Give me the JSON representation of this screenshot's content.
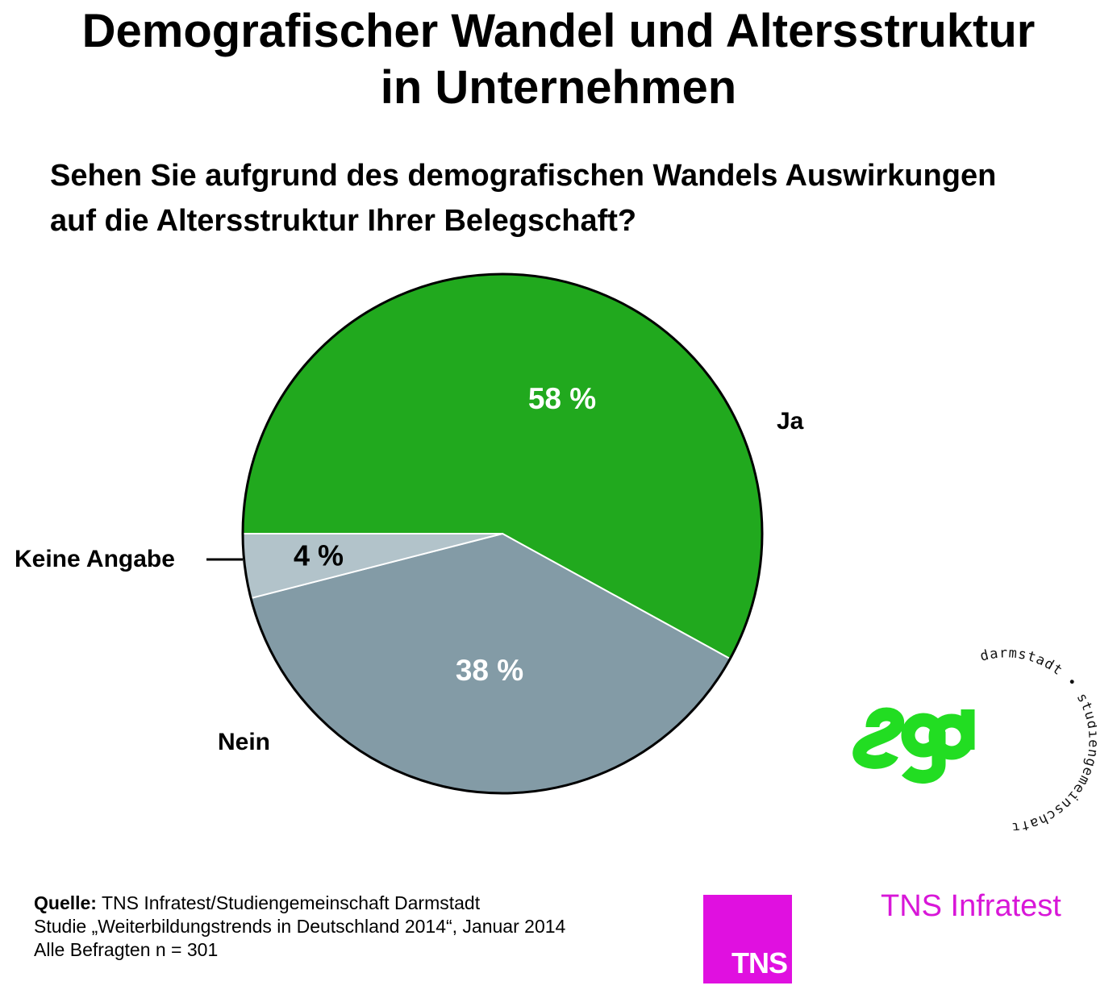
{
  "title_line1": "Demografischer Wandel und Altersstruktur",
  "title_line2": "in Unternehmen",
  "question_line1": "Sehen Sie aufgrund des demografischen Wandels Auswirkungen",
  "question_line2": "auf die Altersstruktur Ihrer Belegschaft?",
  "chart_data": {
    "type": "pie",
    "slices": [
      {
        "label": "Ja",
        "value": 58,
        "value_label": "58 %",
        "color": "#21a91e",
        "label_color": "#ffffff"
      },
      {
        "label": "Nein",
        "value": 38,
        "value_label": "38 %",
        "color": "#839ba6",
        "label_color": "#ffffff"
      },
      {
        "label": "Keine Angabe",
        "value": 4,
        "value_label": "4 %",
        "color": "#b2c3ca",
        "label_color": "#000000"
      }
    ]
  },
  "source": {
    "prefix": "Quelle:",
    "line1": " TNS Infratest/Studiengemeinschaft Darmstadt",
    "line2": "Studie „Weiterbildungstrends in Deutschland 2014“, Januar 2014",
    "line3": "Alle Befragten n = 301"
  },
  "logos": {
    "tns_box": "TNS",
    "tns_wordmark": "TNS Infratest",
    "tns_color": "#e010e0",
    "sgd_mark": "sgd",
    "sgd_ring_text": "studiengemeinschaft · darmstadt",
    "sgd_color": "#22dd22"
  }
}
